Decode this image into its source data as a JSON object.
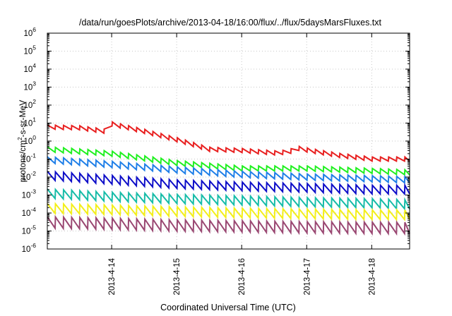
{
  "chart_data": {
    "type": "line",
    "title": "/data/run/goesPlots/archive/2013-04-18/16:00/flux/../flux/5daysMarsFluxes.txt",
    "xlabel": "Coordinated Universal Time (UTC)",
    "ylabel_parts": [
      "protons/cm",
      "2",
      "-s-sr-MeV"
    ],
    "y_scale": "log",
    "ylim": [
      1e-06,
      1000000.0
    ],
    "y_ticks": [
      {
        "mant": "10",
        "exp": "-6",
        "value": 1e-06
      },
      {
        "mant": "10",
        "exp": "-5",
        "value": 1e-05
      },
      {
        "mant": "10",
        "exp": "-4",
        "value": 0.0001
      },
      {
        "mant": "10",
        "exp": "-3",
        "value": 0.001
      },
      {
        "mant": "10",
        "exp": "-2",
        "value": 0.01
      },
      {
        "mant": "10",
        "exp": "-1",
        "value": 0.1
      },
      {
        "mant": "10",
        "exp": "0",
        "value": 1
      },
      {
        "mant": "10",
        "exp": "1",
        "value": 10
      },
      {
        "mant": "10",
        "exp": "2",
        "value": 100
      },
      {
        "mant": "10",
        "exp": "3",
        "value": 1000
      },
      {
        "mant": "10",
        "exp": "4",
        "value": 10000
      },
      {
        "mant": "10",
        "exp": "5",
        "value": 100000
      },
      {
        "mant": "10",
        "exp": "6",
        "value": 1000000
      }
    ],
    "xlim": [
      "2013-04-13T00:15",
      "2013-04-18T14:00"
    ],
    "x_ticks": [
      {
        "label": "2013-4-14",
        "value": "2013-04-14T00:00"
      },
      {
        "label": "2013-4-15",
        "value": "2013-04-15T00:00"
      },
      {
        "label": "2013-4-16",
        "value": "2013-04-16T00:00"
      },
      {
        "label": "2013-4-17",
        "value": "2013-04-17T00:00"
      },
      {
        "label": "2013-4-18",
        "value": "2013-04-18T00:00"
      }
    ],
    "grid": true,
    "legend": "none",
    "sawtooth_period_hours": 3,
    "series": [
      {
        "color": "#e81f1f",
        "points": [
          [
            "2013-04-13T00:15",
            6
          ],
          [
            "2013-04-13T12:00",
            5.5
          ],
          [
            "2013-04-13T23:30",
            3.2
          ],
          [
            "2013-04-14T00:00",
            9
          ],
          [
            "2013-04-14T12:00",
            3.5
          ],
          [
            "2013-04-15T00:00",
            1.2
          ],
          [
            "2013-04-15T12:00",
            0.35
          ],
          [
            "2013-04-16T00:00",
            0.3
          ],
          [
            "2013-04-16T12:00",
            0.22
          ],
          [
            "2013-04-16T18:00",
            0.25
          ],
          [
            "2013-04-16T19:00",
            0.45
          ],
          [
            "2013-04-17T00:00",
            0.32
          ],
          [
            "2013-04-17T12:00",
            0.16
          ],
          [
            "2013-04-18T00:00",
            0.1
          ],
          [
            "2013-04-18T14:00",
            0.1
          ]
        ],
        "amplitude": 1.7
      },
      {
        "color": "#20f020",
        "points": [
          [
            "2013-04-13T00:15",
            0.35
          ],
          [
            "2013-04-14T00:00",
            0.2
          ],
          [
            "2013-04-15T00:00",
            0.06
          ],
          [
            "2013-04-16T00:00",
            0.03
          ],
          [
            "2013-04-17T00:00",
            0.03
          ],
          [
            "2013-04-18T00:00",
            0.022
          ],
          [
            "2013-04-18T14:00",
            0.018
          ]
        ],
        "amplitude": 1.9
      },
      {
        "color": "#1f7fe8",
        "points": [
          [
            "2013-04-13T00:15",
            0.09
          ],
          [
            "2013-04-14T00:00",
            0.05
          ],
          [
            "2013-04-15T00:00",
            0.025
          ],
          [
            "2013-04-16T00:00",
            0.014
          ],
          [
            "2013-04-17T00:00",
            0.01
          ],
          [
            "2013-04-18T00:00",
            0.008
          ],
          [
            "2013-04-18T14:00",
            0.007
          ]
        ],
        "amplitude": 2.2
      },
      {
        "color": "#0d0dc8",
        "points": [
          [
            "2013-04-13T00:15",
            0.012
          ],
          [
            "2013-04-14T00:00",
            0.007
          ],
          [
            "2013-04-15T00:00",
            0.004
          ],
          [
            "2013-04-16T00:00",
            0.003
          ],
          [
            "2013-04-17T00:00",
            0.0025
          ],
          [
            "2013-04-18T00:00",
            0.002
          ],
          [
            "2013-04-18T14:00",
            0.002
          ]
        ],
        "amplitude": 3.0
      },
      {
        "color": "#16bca8",
        "points": [
          [
            "2013-04-13T00:15",
            0.0012
          ],
          [
            "2013-04-14T00:00",
            0.0008
          ],
          [
            "2013-04-15T00:00",
            0.0006
          ],
          [
            "2013-04-16T00:00",
            0.0005
          ],
          [
            "2013-04-17T00:00",
            0.0004
          ],
          [
            "2013-04-18T00:00",
            0.00035
          ],
          [
            "2013-04-18T14:00",
            0.0003
          ]
        ],
        "amplitude": 3.2
      },
      {
        "color": "#f3ef1a",
        "points": [
          [
            "2013-04-13T00:15",
            0.00018
          ],
          [
            "2013-04-14T00:00",
            0.00015
          ],
          [
            "2013-04-15T00:00",
            0.00012
          ],
          [
            "2013-04-16T00:00",
            0.0001
          ],
          [
            "2013-04-17T00:00",
            9e-05
          ],
          [
            "2013-04-18T00:00",
            8e-05
          ],
          [
            "2013-04-18T14:00",
            8e-05
          ]
        ],
        "amplitude": 3.4
      },
      {
        "color": "#9a4772",
        "points": [
          [
            "2013-04-13T00:15",
            3e-05
          ],
          [
            "2013-04-14T00:00",
            2.5e-05
          ],
          [
            "2013-04-15T00:00",
            2e-05
          ],
          [
            "2013-04-16T00:00",
            1.8e-05
          ],
          [
            "2013-04-17T00:00",
            1.6e-05
          ],
          [
            "2013-04-18T00:00",
            1.5e-05
          ],
          [
            "2013-04-18T14:00",
            1.5e-05
          ]
        ],
        "amplitude": 4.2
      }
    ]
  }
}
